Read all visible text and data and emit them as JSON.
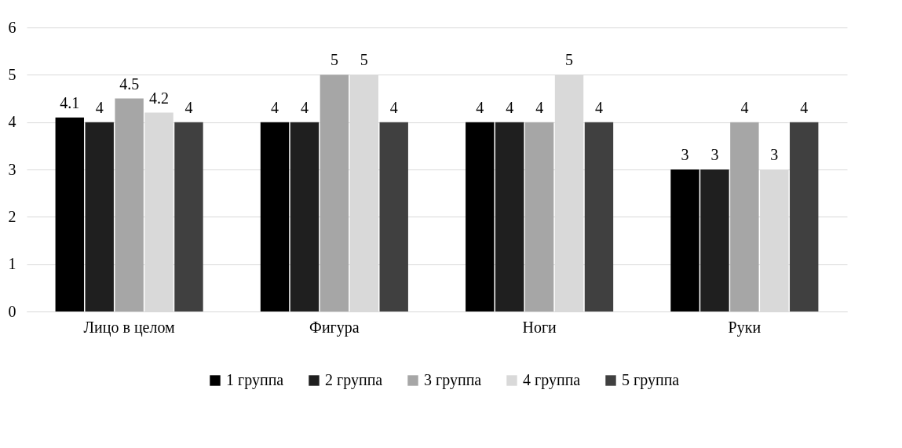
{
  "chart_data": {
    "type": "bar",
    "categories": [
      "Лицо в целом",
      "Фигура",
      "Ноги",
      "Руки"
    ],
    "series": [
      {
        "name": "1 группа",
        "color": "#000000",
        "values": [
          4.1,
          4,
          4,
          3
        ]
      },
      {
        "name": "2 группа",
        "color": "#1f1f1f",
        "values": [
          4,
          4,
          4,
          3
        ]
      },
      {
        "name": "3 группа",
        "color": "#a6a6a6",
        "values": [
          4.5,
          5,
          4,
          4
        ]
      },
      {
        "name": "4 группа",
        "color": "#d9d9d9",
        "values": [
          4.2,
          5,
          5,
          3
        ]
      },
      {
        "name": "5 группа",
        "color": "#404040",
        "values": [
          4,
          4,
          4,
          4
        ]
      }
    ],
    "ylim": [
      0,
      6
    ],
    "yticks": [
      0,
      1,
      2,
      3,
      4,
      5,
      6
    ],
    "grid": "y",
    "legend": "bottom",
    "data_labels": true
  }
}
